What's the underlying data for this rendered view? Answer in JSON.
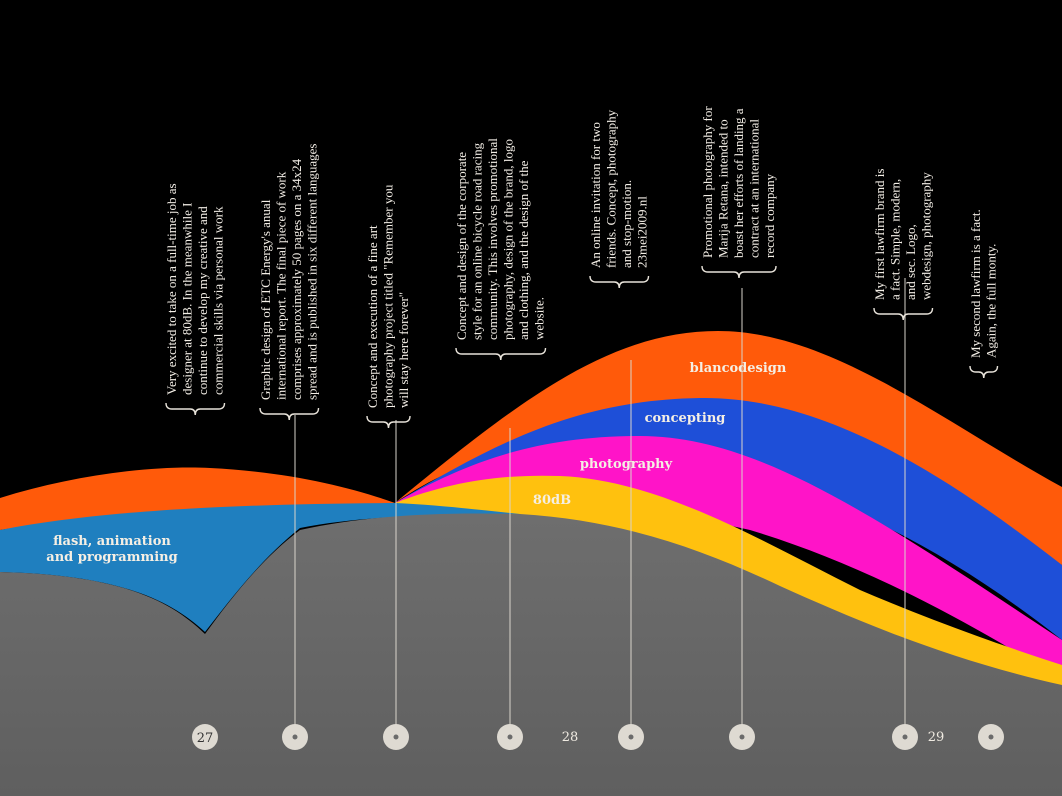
{
  "chart_data": {
    "type": "area",
    "title": "",
    "series": [
      {
        "name": "flash, animation and programming",
        "color": "#1f7fbf"
      },
      {
        "name": "blancodesign",
        "color": "#ff5a0a"
      },
      {
        "name": "concepting",
        "color": "#1e4fd8"
      },
      {
        "name": "photography",
        "color": "#ff14c8"
      },
      {
        "name": "80dB",
        "color": "#ffc10e"
      }
    ],
    "markers": [
      {
        "label": "27"
      },
      {
        "label": ""
      },
      {
        "label": ""
      },
      {
        "label": ""
      },
      {
        "label": ""
      },
      {
        "label": ""
      },
      {
        "label": ""
      },
      {
        "label": ""
      }
    ],
    "axis_labels": [
      "28",
      "29"
    ],
    "annotations": [
      {
        "lines": [
          "Very excited to take on a full-time job as",
          "designer at 80dB. In the meanwhile I",
          "continue to develop my creative and",
          "commercial skills via personal work"
        ]
      },
      {
        "lines": [
          "Graphic design of ETC Energy's anual",
          "international report. The final piece of work",
          "comprises approximately 50 pages on a 34x24",
          "spread and is published in six different languages"
        ]
      },
      {
        "lines": [
          "Concept and execution of a fine art",
          "photography project titled \"Remember you",
          "will stay here forever\""
        ]
      },
      {
        "lines": [
          "Concept and design of the corporate",
          "style for an online bicycle road racing",
          "community. This involves promotional",
          "photography, design of the brand, logo",
          "and clothing, and the design of the",
          "website."
        ]
      },
      {
        "lines": [
          "An online invitation for two",
          "friends. Concept, photography",
          "and stop-motion.",
          "23mei2009.nl"
        ]
      },
      {
        "lines": [
          "Promotional photography for",
          "Marija Retana, intended to",
          "boast her efforts of landing a",
          "contract at an international",
          "record company"
        ]
      },
      {
        "lines": [
          "My first lawfirm brand is",
          "a fact. Simple, modern,",
          "and sec. Logo,",
          "webdesign, photography"
        ]
      },
      {
        "lines": [
          "My second lawfirm is a fact.",
          "Again, the full monty."
        ]
      }
    ]
  },
  "colors": {
    "background": "#000000",
    "ground": "#676767",
    "marker": "#dedad2"
  }
}
